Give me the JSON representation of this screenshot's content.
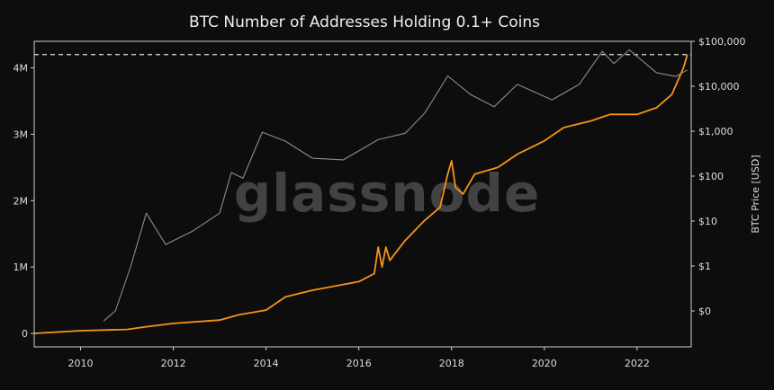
{
  "chart_data": {
    "type": "line",
    "title": "BTC Number of Addresses Holding 0.1+ Coins",
    "watermark": "glassnode",
    "x_ticks": [
      "2010",
      "2012",
      "2014",
      "2016",
      "2018",
      "2020",
      "2022"
    ],
    "xlim": [
      "2009-01",
      "2023-03"
    ],
    "y_left": {
      "ticks": [
        "0",
        "1M",
        "2M",
        "3M",
        "4M"
      ],
      "range": [
        0,
        4400000
      ],
      "label": ""
    },
    "y_right": {
      "ticks": [
        "$0",
        "$1",
        "$10",
        "$100",
        "$1,000",
        "$10,000",
        "$100,000"
      ],
      "scale": "log",
      "label": "BTC Price [USD]"
    },
    "reference_line": {
      "axis": "left",
      "value": 4200000,
      "style": "dashed",
      "color": "#e0e0e0"
    },
    "colors": {
      "addresses": "#f7931a",
      "price": "#8c8c8c",
      "background": "#0d0d0d"
    },
    "series": [
      {
        "id": "addresses",
        "axis": "left",
        "x": [
          "2009-01",
          "2010-01",
          "2011-01",
          "2011-06",
          "2012-01",
          "2013-01",
          "2013-06",
          "2014-01",
          "2014-06",
          "2015-01",
          "2016-01",
          "2016-05",
          "2016-06",
          "2016-07",
          "2016-08",
          "2016-09",
          "2017-01",
          "2017-06",
          "2017-10",
          "2017-12",
          "2018-01",
          "2018-02",
          "2018-04",
          "2018-07",
          "2019-01",
          "2019-06",
          "2020-01",
          "2020-06",
          "2021-01",
          "2021-06",
          "2022-01",
          "2022-06",
          "2022-10",
          "2023-01",
          "2023-02"
        ],
        "y": [
          0,
          40000,
          60000,
          100000,
          150000,
          200000,
          280000,
          350000,
          550000,
          650000,
          780000,
          900000,
          1300000,
          1000000,
          1300000,
          1100000,
          1400000,
          1700000,
          1900000,
          2400000,
          2600000,
          2200000,
          2100000,
          2400000,
          2500000,
          2700000,
          2900000,
          3100000,
          3200000,
          3300000,
          3300000,
          3400000,
          3600000,
          4000000,
          4200000
        ]
      },
      {
        "id": "price",
        "axis": "right",
        "x": [
          "2010-07",
          "2010-10",
          "2011-02",
          "2011-06",
          "2011-11",
          "2012-06",
          "2013-01",
          "2013-04",
          "2013-07",
          "2013-12",
          "2014-06",
          "2015-01",
          "2015-09",
          "2016-06",
          "2017-01",
          "2017-06",
          "2017-12",
          "2018-06",
          "2018-12",
          "2019-06",
          "2020-03",
          "2020-10",
          "2021-04",
          "2021-07",
          "2021-11",
          "2022-06",
          "2022-11",
          "2023-02"
        ],
        "y": [
          0.06,
          0.1,
          1,
          15,
          3,
          6,
          15,
          120,
          90,
          950,
          600,
          250,
          230,
          650,
          900,
          2500,
          17000,
          6500,
          3500,
          11000,
          5000,
          11000,
          60000,
          32000,
          65000,
          20000,
          16500,
          23000
        ]
      }
    ]
  }
}
